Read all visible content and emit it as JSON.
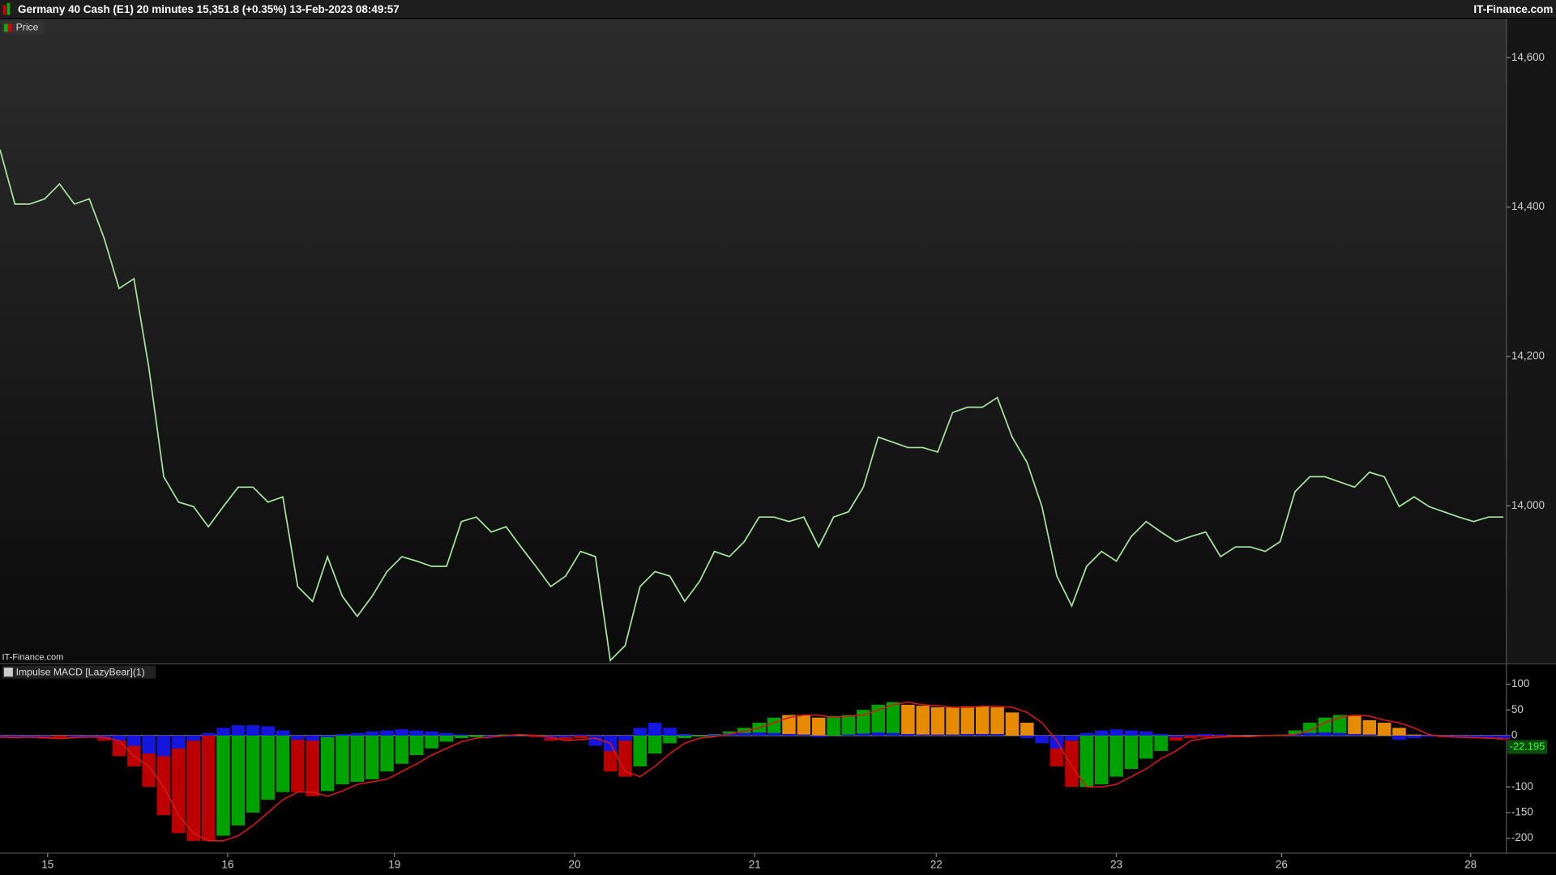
{
  "header": {
    "title": "Germany 40 Cash (E1) 20 minutes 15,351.8 (+0.35%) 13-Feb-2023 08:49:57",
    "brand": "IT-Finance.com"
  },
  "chart_data": [
    {
      "type": "line",
      "watermark": "IT-Finance.com",
      "series": [
        {
          "name": "Price",
          "color": "#a8e6a0",
          "values": [
            14477,
            14404,
            14404,
            14411,
            14431,
            14404,
            14411,
            14358,
            14291,
            14304,
            14185,
            14039,
            14005,
            13999,
            13972,
            13999,
            14025,
            14025,
            14005,
            14012,
            13892,
            13872,
            13932,
            13879,
            13852,
            13879,
            13912,
            13932,
            13926,
            13919,
            13919,
            13979,
            13985,
            13965,
            13972,
            13945,
            13919,
            13892,
            13906,
            13939,
            13932,
            13793,
            13813,
            13892,
            13912,
            13906,
            13872,
            13899,
            13939,
            13932,
            13952,
            13985,
            13985,
            13979,
            13985,
            13945,
            13985,
            13992,
            14025,
            14092,
            14085,
            14078,
            14078,
            14072,
            14125,
            14132,
            14132,
            14145,
            14092,
            14058,
            13999,
            13906,
            13866,
            13919,
            13939,
            13926,
            13959,
            13979,
            13965,
            13952,
            13959,
            13965,
            13932,
            13945,
            13945,
            13939,
            13952,
            14019,
            14039,
            14039,
            14032,
            14025,
            14045,
            14039,
            13999,
            14012,
            13999,
            13992,
            13985,
            13979,
            13985,
            13985
          ]
        }
      ],
      "xlim": [
        0,
        101.2
      ],
      "ylim": [
        13790,
        14652
      ],
      "yticks": [
        {
          "value": 14600,
          "label": "14,600"
        },
        {
          "value": 14400,
          "label": "14,400"
        },
        {
          "value": 14200,
          "label": "14,200"
        },
        {
          "value": 14000,
          "label": "14,000"
        }
      ]
    },
    {
      "type": "bar",
      "title": "Impulse MACD [LazyBear](1)",
      "histogram": {
        "values": [
          -4,
          -3,
          -4,
          -6,
          -4,
          -3,
          -3,
          -10,
          -40,
          -60,
          -100,
          -155,
          -190,
          -205,
          -205,
          -195,
          -175,
          -150,
          -125,
          -110,
          -110,
          -118,
          -108,
          -95,
          -90,
          -85,
          -70,
          -55,
          -38,
          -25,
          -12,
          -5,
          -3,
          0,
          2,
          0,
          -3,
          -10,
          -8,
          -5,
          -15,
          -70,
          -80,
          -60,
          -35,
          -15,
          -5,
          -2,
          3,
          8,
          15,
          25,
          35,
          40,
          40,
          35,
          38,
          40,
          50,
          60,
          65,
          60,
          58,
          55,
          55,
          57,
          57,
          55,
          45,
          25,
          -10,
          -60,
          -100,
          -100,
          -95,
          -80,
          -65,
          -45,
          -30,
          -10,
          -5,
          -3,
          -2,
          -2,
          0,
          0,
          2,
          10,
          25,
          35,
          40,
          38,
          30,
          25,
          15,
          2,
          -2,
          -3,
          -4,
          -5,
          -6,
          -8
        ],
        "colors": [
          "#d00000",
          "#d00000",
          "#d00000",
          "#d00000",
          "#d00000",
          "#d00000",
          "#d00000",
          "#d00000",
          "#d00000",
          "#d00000",
          "#d00000",
          "#d00000",
          "#d00000",
          "#d00000",
          "#d00000",
          "#00b400",
          "#00b400",
          "#00b400",
          "#00b400",
          "#00b400",
          "#d00000",
          "#d00000",
          "#00b400",
          "#00b400",
          "#00b400",
          "#00b400",
          "#00b400",
          "#00b400",
          "#00b400",
          "#00b400",
          "#00b400",
          "#00b400",
          "#00b400",
          "#00b400",
          "#00b400",
          "#00b400",
          "#d00000",
          "#d00000",
          "#d00000",
          "#d00000",
          "#d00000",
          "#d00000",
          "#d00000",
          "#00b400",
          "#00b400",
          "#00b400",
          "#00b400",
          "#00b400",
          "#00b400",
          "#00b400",
          "#00b400",
          "#00b400",
          "#00b400",
          "#ff9900",
          "#ff9900",
          "#ff9900",
          "#00b400",
          "#00b400",
          "#00b400",
          "#00b400",
          "#00b400",
          "#ff9900",
          "#ff9900",
          "#ff9900",
          "#ff9900",
          "#ff9900",
          "#ff9900",
          "#ff9900",
          "#ff9900",
          "#ff9900",
          "#d00000",
          "#d00000",
          "#d00000",
          "#00b400",
          "#00b400",
          "#00b400",
          "#00b400",
          "#00b400",
          "#00b400",
          "#d00000",
          "#d00000",
          "#d00000",
          "#d00000",
          "#d00000",
          "#00b400",
          "#00b400",
          "#00b400",
          "#00b400",
          "#00b400",
          "#00b400",
          "#00b400",
          "#ff9900",
          "#ff9900",
          "#ff9900",
          "#ff9900",
          "#ff9900",
          "#d00000",
          "#d00000",
          "#d00000",
          "#d00000",
          "#d00000",
          "#d00000"
        ]
      },
      "blue_histogram": {
        "color": "#1515e0",
        "values": [
          -2,
          -2,
          -3,
          -2,
          0,
          -2,
          -3,
          -5,
          -10,
          -20,
          -35,
          -40,
          -25,
          -10,
          5,
          15,
          20,
          20,
          18,
          10,
          -8,
          -10,
          -3,
          3,
          5,
          8,
          10,
          12,
          10,
          8,
          5,
          2,
          0,
          -2,
          -2,
          0,
          0,
          -5,
          -3,
          2,
          -20,
          -30,
          -10,
          15,
          25,
          15,
          3,
          0,
          2,
          4,
          5,
          6,
          5,
          3,
          2,
          -3,
          0,
          2,
          4,
          6,
          5,
          3,
          2,
          2,
          2,
          3,
          3,
          3,
          0,
          -5,
          -15,
          -25,
          -10,
          5,
          10,
          12,
          10,
          8,
          3,
          -3,
          2,
          3,
          2,
          0,
          0,
          0,
          0,
          3,
          5,
          6,
          5,
          3,
          2,
          0,
          -8,
          -5,
          -2,
          -2,
          -3,
          -4,
          -4,
          -5
        ]
      },
      "signal": {
        "color": "#d41a1a",
        "values": [
          -3,
          -4,
          -3,
          -4,
          -6,
          -4,
          -3,
          -3,
          -10,
          -40,
          -60,
          -100,
          -155,
          -190,
          -205,
          -205,
          -195,
          -175,
          -150,
          -125,
          -110,
          -110,
          -118,
          -108,
          -95,
          -90,
          -85,
          -70,
          -55,
          -38,
          -25,
          -12,
          -5,
          -3,
          0,
          2,
          0,
          -3,
          -10,
          -8,
          -5,
          -15,
          -70,
          -80,
          -60,
          -35,
          -15,
          -5,
          -2,
          3,
          8,
          15,
          25,
          35,
          40,
          40,
          35,
          38,
          40,
          50,
          60,
          65,
          60,
          58,
          55,
          55,
          57,
          57,
          55,
          45,
          25,
          -10,
          -60,
          -100,
          -100,
          -95,
          -80,
          -65,
          -45,
          -30,
          -10,
          -5,
          -3,
          -2,
          -2,
          0,
          0,
          2,
          10,
          25,
          35,
          40,
          38,
          30,
          25,
          15,
          2,
          -2,
          -3,
          -4,
          -5,
          -6
        ]
      },
      "annotations": [
        {
          "value": -22.195,
          "label": "-22.195"
        }
      ],
      "xlim": [
        0,
        101.2
      ],
      "xticks": [
        {
          "value": 3.2,
          "label": "15"
        },
        {
          "value": 15.3,
          "label": "16"
        },
        {
          "value": 26.5,
          "label": "19"
        },
        {
          "value": 38.6,
          "label": "20"
        },
        {
          "value": 50.7,
          "label": "21"
        },
        {
          "value": 62.9,
          "label": "22"
        },
        {
          "value": 75,
          "label": "23"
        },
        {
          "value": 86.1,
          "label": "26"
        },
        {
          "value": 98.8,
          "label": "28"
        }
      ],
      "ylim": [
        -229,
        138
      ],
      "yticks": [
        100,
        50,
        0,
        -100,
        -150,
        -200
      ]
    }
  ]
}
